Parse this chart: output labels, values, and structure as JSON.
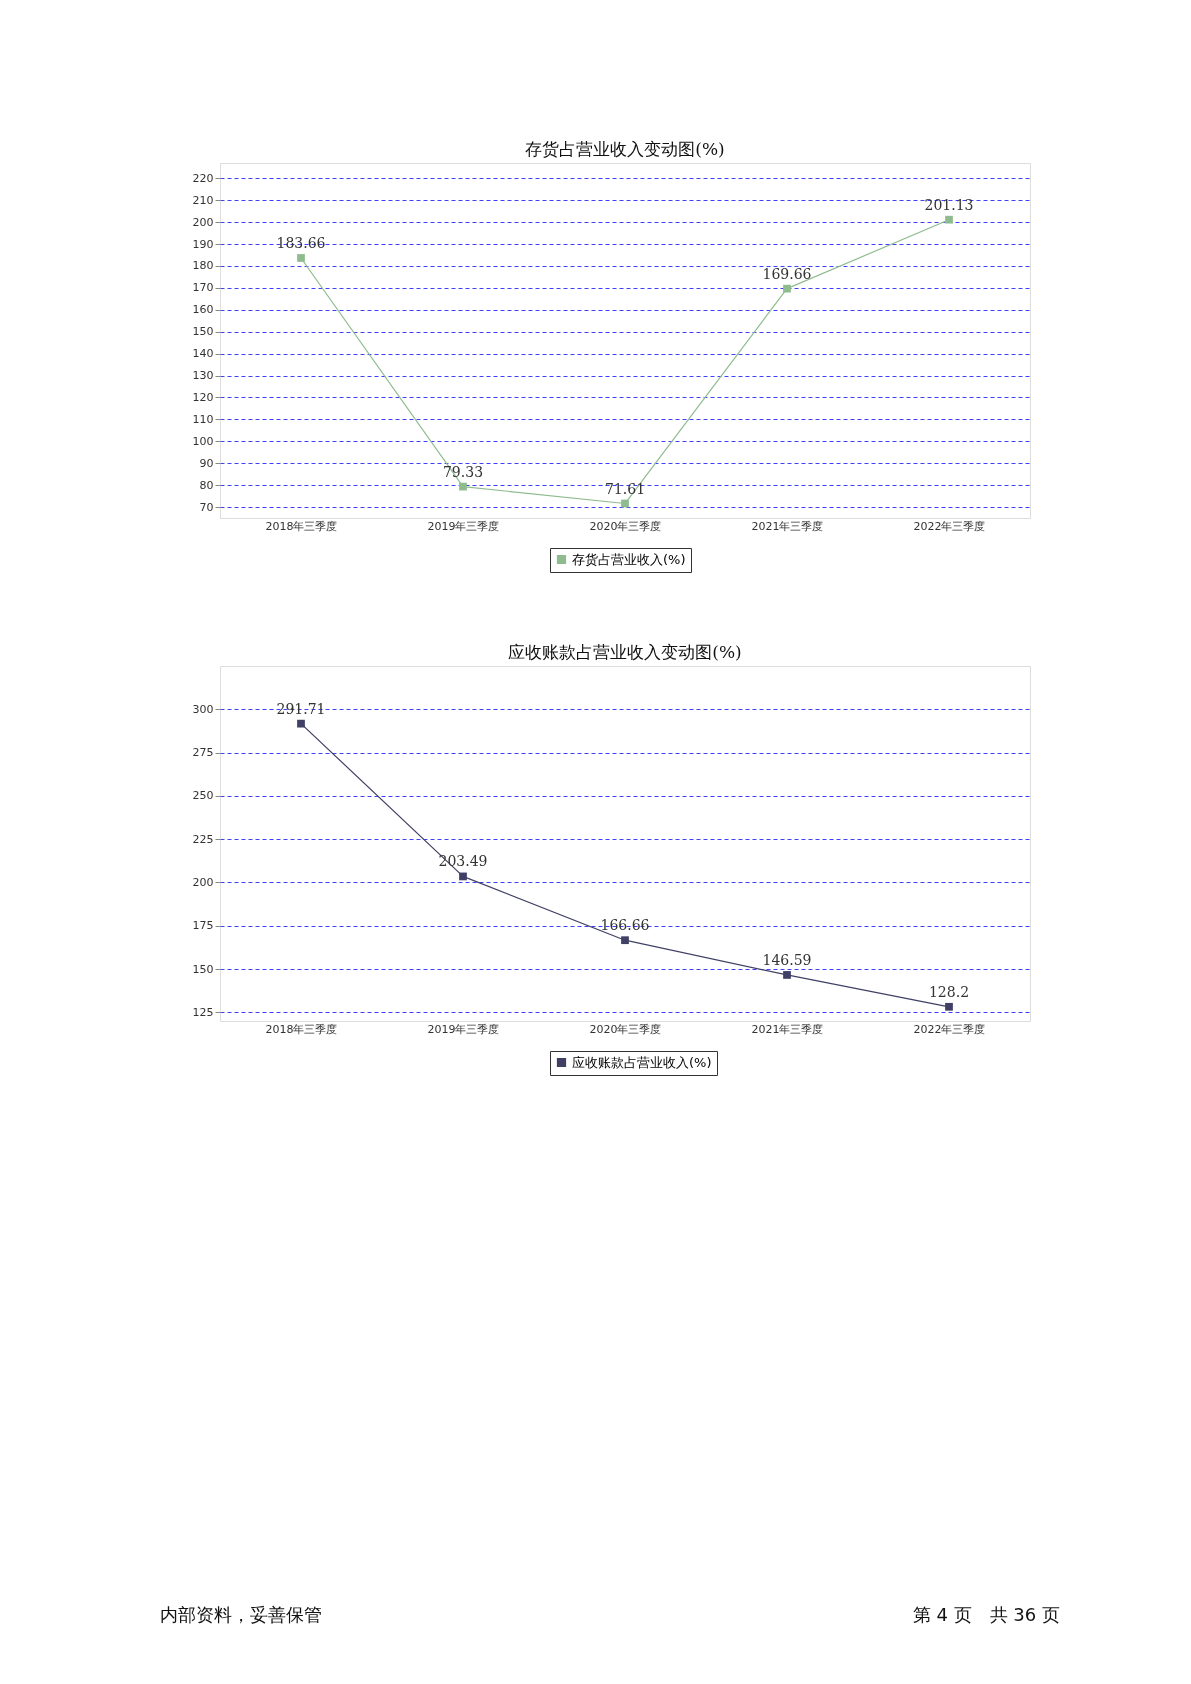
{
  "chart_data": [
    {
      "type": "line",
      "title": "存货占营业收入变动图(%)",
      "categories": [
        "2018年三季度",
        "2019年三季度",
        "2020年三季度",
        "2021年三季度",
        "2022年三季度"
      ],
      "series": [
        {
          "name": "存货占营业收入(%)",
          "color": "#8fbc8f",
          "values": [
            183.66,
            79.33,
            71.61,
            169.66,
            201.13
          ]
        }
      ],
      "ylim": [
        65,
        227
      ],
      "yticks": [
        70,
        80,
        90,
        100,
        110,
        120,
        130,
        140,
        150,
        160,
        170,
        180,
        190,
        200,
        210,
        220
      ],
      "grid": "y",
      "legend": "bottom",
      "marker": "square",
      "line_style": "solid",
      "data_labels": true
    },
    {
      "type": "line",
      "title": "应收账款占营业收入变动图(%)",
      "categories": [
        "2018年三季度",
        "2019年三季度",
        "2020年三季度",
        "2021年三季度",
        "2022年三季度"
      ],
      "series": [
        {
          "name": "应收账款占营业收入(%)",
          "color": "#404066",
          "values": [
            291.71,
            203.49,
            166.66,
            146.59,
            128.2
          ]
        }
      ],
      "ylim": [
        120,
        325
      ],
      "yticks": [
        125,
        150,
        175,
        200,
        225,
        250,
        275,
        300
      ],
      "grid": "y",
      "legend": "bottom",
      "marker": "square",
      "line_style": "solid",
      "data_labels": true,
      "annotations": [
        "内部资料，妥善保管",
        "第 4 页　共 36 页"
      ]
    }
  ]
}
